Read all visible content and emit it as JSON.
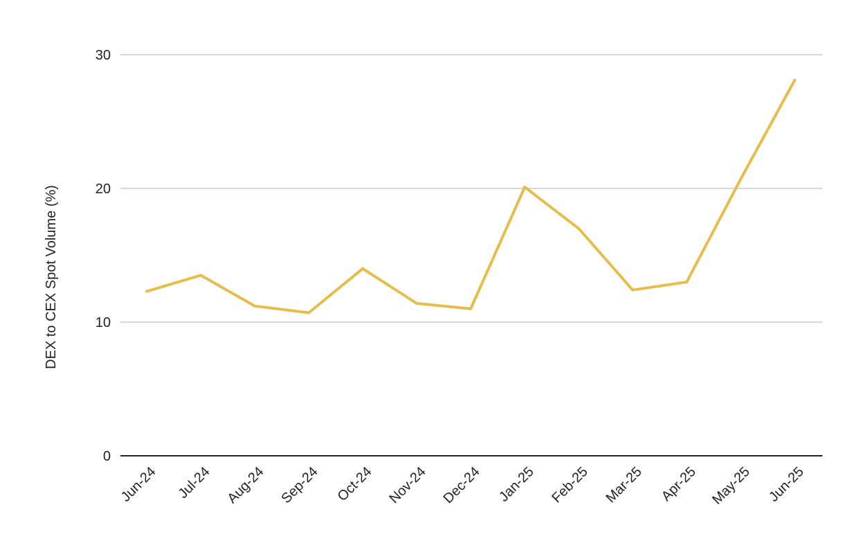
{
  "colors": {
    "series": "#e6bc4b",
    "grid": "#c8c8c8",
    "axis": "#222222",
    "text": "#222222",
    "background": "#ffffff"
  },
  "chart_data": {
    "type": "line",
    "title": "",
    "xlabel": "",
    "ylabel": "DEX to CEX Spot Volume (%)",
    "ylim": [
      0,
      30
    ],
    "yticks": [
      0,
      10,
      20,
      30
    ],
    "grid": true,
    "legend": "none",
    "categories": [
      "Jun-24",
      "Jul-24",
      "Aug-24",
      "Sep-24",
      "Oct-24",
      "Nov-24",
      "Dec-24",
      "Jan-25",
      "Feb-25",
      "Mar-25",
      "Apr-25",
      "May-25",
      "Jun-25"
    ],
    "series": [
      {
        "values": [
          12.3,
          13.5,
          11.2,
          10.7,
          14.0,
          11.4,
          11.0,
          20.1,
          17.0,
          12.4,
          13.0,
          20.7,
          28.1
        ]
      }
    ]
  }
}
